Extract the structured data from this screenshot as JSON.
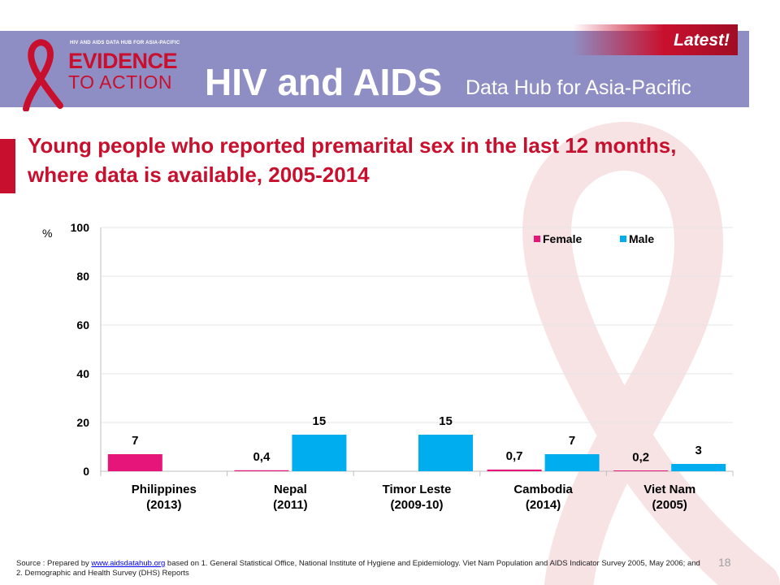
{
  "header": {
    "logo_small": "HIV AND AIDS DATA HUB FOR ASIA-PACIFIC",
    "logo_line1": "EVIDENCE",
    "logo_line2": "TO ACTION",
    "title": "HIV and AIDS",
    "subtitle": "Data Hub for Asia-Pacific",
    "badge": "Latest!",
    "brand_color": "#c8102e",
    "header_color": "#8e8ec4"
  },
  "slide": {
    "title": "Young people who reported premarital sex in the last 12 months, where data is available, 2005-2014",
    "page_number": "18"
  },
  "source": {
    "prefix": "Source : Prepared by",
    "link": "www.aidsdatahub.org",
    "suffix": "based on 1. General Statistical Office, National Institute of Hygiene and Epidemiology. Viet Nam Population and AIDS Indicator Survey 2005, May 2006; and 2. Demographic and Health Survey (DHS) Reports"
  },
  "chart_data": {
    "type": "bar",
    "ylabel": "%",
    "ylim": [
      0,
      100
    ],
    "yticks": [
      "0",
      "20",
      "40",
      "60",
      "80",
      "100"
    ],
    "grid": true,
    "legend_position": "top-right",
    "categories": [
      [
        "Philippines",
        "(2013)"
      ],
      [
        "Nepal",
        "(2011)"
      ],
      [
        "Timor Leste",
        "(2009-10)"
      ],
      [
        "Cambodia",
        "(2014)"
      ],
      [
        "Viet Nam",
        "(2005)"
      ]
    ],
    "series": [
      {
        "name": "Female",
        "color": "#e5157a",
        "values": [
          7,
          0.4,
          null,
          0.7,
          0.2
        ],
        "labels": [
          "7",
          "0,4",
          "",
          "0,7",
          "0,2"
        ]
      },
      {
        "name": "Male",
        "color": "#00adef",
        "values": [
          null,
          15,
          15,
          7,
          3
        ],
        "labels": [
          "",
          "15",
          "15",
          "7",
          "3"
        ]
      }
    ]
  }
}
